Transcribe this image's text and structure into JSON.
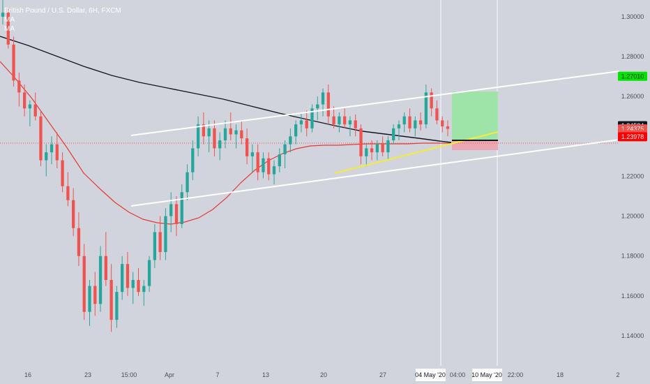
{
  "header": {
    "title": "British Pound / U.S. Dollar, 6H, FXCM",
    "indicators": [
      "MA",
      "MA"
    ]
  },
  "colors": {
    "background": "#d1d4dc",
    "up_candle": "#26a69a",
    "down_candle": "#ef5350",
    "ma_fast": "#e53935",
    "ma_slow": "#131722",
    "channel": "#ffffff",
    "trendline": "#f5eb3b",
    "target_zone": "#98e6a3",
    "stop_zone": "#eea3ad",
    "axis_text": "#4a4e5a"
  },
  "price_axis": {
    "ticks": [
      "1.30000",
      "1.28000",
      "1.26000",
      "1.24000",
      "1.22000",
      "1.20000",
      "1.18000",
      "1.16000",
      "1.14000"
    ]
  },
  "price_tags": [
    {
      "label": "1.27010",
      "color": "#00e600",
      "text_color": "#131722",
      "value": 1.2701
    },
    {
      "label": "1.24534",
      "color": "#131722",
      "text_color": "#ffffff",
      "value": 1.24534
    },
    {
      "label": "1.24375",
      "color": "#ef5350",
      "text_color": "#ffffff",
      "value": 1.24375
    },
    {
      "label": "05:23:01",
      "color": "#ef5350",
      "text_color": "#ffffff",
      "value": 1.2408
    },
    {
      "label": "1.23978",
      "color": "#ff0000",
      "text_color": "#ffffff",
      "value": 1.23978
    }
  ],
  "time_axis": {
    "ticks": [
      "16",
      "23",
      "15:00",
      "Apr",
      "7",
      "13",
      "20",
      "27",
      "04 May '20",
      "04:00",
      "10 May '20",
      "22:00",
      "18",
      "2"
    ]
  },
  "chart_data": {
    "type": "candlestick",
    "symbol": "GBPUSD",
    "timeframe": "6H",
    "ylim": [
      1.125,
      1.31
    ],
    "series": [
      {
        "name": "MA",
        "type": "line"
      },
      {
        "name": "MA",
        "type": "line"
      }
    ],
    "candles": [
      [
        1.3,
        1.311,
        1.296,
        1.302
      ],
      [
        1.302,
        1.304,
        1.284,
        1.286
      ],
      [
        1.286,
        1.29,
        1.265,
        1.268
      ],
      [
        1.268,
        1.272,
        1.255,
        1.262
      ],
      [
        1.262,
        1.266,
        1.25,
        1.254
      ],
      [
        1.254,
        1.258,
        1.245,
        1.256
      ],
      [
        1.256,
        1.262,
        1.248,
        1.25
      ],
      [
        1.25,
        1.253,
        1.225,
        1.228
      ],
      [
        1.228,
        1.236,
        1.22,
        1.232
      ],
      [
        1.232,
        1.24,
        1.226,
        1.236
      ],
      [
        1.236,
        1.242,
        1.224,
        1.228
      ],
      [
        1.228,
        1.232,
        1.212,
        1.215
      ],
      [
        1.215,
        1.222,
        1.205,
        1.208
      ],
      [
        1.208,
        1.214,
        1.19,
        1.194
      ],
      [
        1.194,
        1.202,
        1.175,
        1.18
      ],
      [
        1.18,
        1.186,
        1.148,
        1.152
      ],
      [
        1.152,
        1.168,
        1.145,
        1.165
      ],
      [
        1.165,
        1.172,
        1.15,
        1.156
      ],
      [
        1.156,
        1.185,
        1.152,
        1.18
      ],
      [
        1.18,
        1.192,
        1.165,
        1.168
      ],
      [
        1.168,
        1.176,
        1.142,
        1.148
      ],
      [
        1.148,
        1.165,
        1.144,
        1.162
      ],
      [
        1.162,
        1.18,
        1.158,
        1.176
      ],
      [
        1.176,
        1.182,
        1.16,
        1.164
      ],
      [
        1.164,
        1.172,
        1.156,
        1.168
      ],
      [
        1.168,
        1.174,
        1.16,
        1.162
      ],
      [
        1.162,
        1.168,
        1.155,
        1.165
      ],
      [
        1.165,
        1.18,
        1.162,
        1.178
      ],
      [
        1.178,
        1.196,
        1.174,
        1.192
      ],
      [
        1.192,
        1.2,
        1.178,
        1.182
      ],
      [
        1.182,
        1.204,
        1.178,
        1.2
      ],
      [
        1.2,
        1.212,
        1.192,
        1.206
      ],
      [
        1.206,
        1.21,
        1.19,
        1.196
      ],
      [
        1.196,
        1.216,
        1.194,
        1.212
      ],
      [
        1.212,
        1.226,
        1.208,
        1.222
      ],
      [
        1.222,
        1.238,
        1.218,
        1.234
      ],
      [
        1.234,
        1.25,
        1.23,
        1.246
      ],
      [
        1.246,
        1.252,
        1.236,
        1.24
      ],
      [
        1.24,
        1.248,
        1.232,
        1.244
      ],
      [
        1.244,
        1.248,
        1.23,
        1.234
      ],
      [
        1.234,
        1.242,
        1.228,
        1.238
      ],
      [
        1.238,
        1.248,
        1.234,
        1.244
      ],
      [
        1.244,
        1.252,
        1.238,
        1.241
      ],
      [
        1.241,
        1.246,
        1.234,
        1.243
      ],
      [
        1.243,
        1.248,
        1.236,
        1.239
      ],
      [
        1.239,
        1.244,
        1.226,
        1.23
      ],
      [
        1.23,
        1.236,
        1.222,
        1.232
      ],
      [
        1.232,
        1.236,
        1.218,
        1.222
      ],
      [
        1.222,
        1.232,
        1.219,
        1.229
      ],
      [
        1.229,
        1.232,
        1.218,
        1.221
      ],
      [
        1.221,
        1.228,
        1.216,
        1.225
      ],
      [
        1.225,
        1.234,
        1.222,
        1.231
      ],
      [
        1.231,
        1.238,
        1.224,
        1.236
      ],
      [
        1.236,
        1.244,
        1.232,
        1.24
      ],
      [
        1.24,
        1.248,
        1.236,
        1.246
      ],
      [
        1.246,
        1.252,
        1.242,
        1.248
      ],
      [
        1.248,
        1.253,
        1.24,
        1.244
      ],
      [
        1.244,
        1.256,
        1.242,
        1.254
      ],
      [
        1.254,
        1.26,
        1.248,
        1.256
      ],
      [
        1.256,
        1.264,
        1.25,
        1.262
      ],
      [
        1.262,
        1.266,
        1.246,
        1.25
      ],
      [
        1.25,
        1.255,
        1.244,
        1.246
      ],
      [
        1.246,
        1.252,
        1.242,
        1.25
      ],
      [
        1.25,
        1.254,
        1.244,
        1.246
      ],
      [
        1.246,
        1.25,
        1.24,
        1.248
      ],
      [
        1.248,
        1.251,
        1.24,
        1.244
      ],
      [
        1.244,
        1.246,
        1.226,
        1.23
      ],
      [
        1.23,
        1.236,
        1.225,
        1.234
      ],
      [
        1.234,
        1.238,
        1.228,
        1.232
      ],
      [
        1.232,
        1.238,
        1.228,
        1.236
      ],
      [
        1.236,
        1.24,
        1.23,
        1.232
      ],
      [
        1.232,
        1.24,
        1.228,
        1.238
      ],
      [
        1.238,
        1.246,
        1.236,
        1.244
      ],
      [
        1.244,
        1.248,
        1.238,
        1.246
      ],
      [
        1.246,
        1.252,
        1.242,
        1.25
      ],
      [
        1.25,
        1.254,
        1.242,
        1.244
      ],
      [
        1.244,
        1.25,
        1.24,
        1.248
      ],
      [
        1.248,
        1.252,
        1.243,
        1.246
      ],
      [
        1.246,
        1.266,
        1.244,
        1.262
      ],
      [
        1.262,
        1.264,
        1.25,
        1.254
      ],
      [
        1.254,
        1.258,
        1.246,
        1.248
      ],
      [
        1.248,
        1.25,
        1.242,
        1.245
      ],
      [
        1.245,
        1.248,
        1.24,
        1.24375
      ]
    ]
  }
}
